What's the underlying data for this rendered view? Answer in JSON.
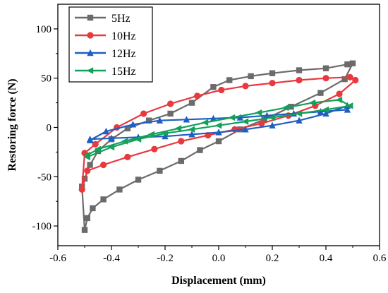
{
  "chart_data": {
    "type": "line",
    "xlabel": "Displacement (mm)",
    "ylabel": "Restoring force (N)",
    "xlim": [
      -0.6,
      0.6
    ],
    "ylim": [
      -120,
      125
    ],
    "xticks": [
      -0.6,
      -0.4,
      -0.2,
      0.0,
      0.2,
      0.4,
      0.6
    ],
    "xtick_labels": [
      "-0.6",
      "-0.4",
      "-0.2",
      "0.0",
      "0.2",
      "0.4",
      "0.6"
    ],
    "yticks": [
      -100,
      -50,
      0,
      50,
      100
    ],
    "ytick_labels": [
      "-100",
      "-50",
      "0",
      "50",
      "100"
    ],
    "grid": false,
    "legend_position": "top-left",
    "series": [
      {
        "name": "5Hz",
        "color": "#6b6b6b",
        "marker": "square",
        "x": [
          -0.5,
          -0.49,
          -0.47,
          -0.43,
          -0.37,
          -0.3,
          -0.22,
          -0.14,
          -0.07,
          0.0,
          0.08,
          0.17,
          0.27,
          0.38,
          0.47,
          0.5,
          0.48,
          0.4,
          0.3,
          0.2,
          0.12,
          0.04,
          -0.02,
          -0.1,
          -0.18,
          -0.26,
          -0.34,
          -0.4,
          -0.45,
          -0.48,
          -0.5,
          -0.51
        ],
        "y": [
          -104,
          -92,
          -82,
          -73,
          -63,
          -53,
          -44,
          -34,
          -23,
          -14,
          -2,
          8,
          21,
          35,
          49,
          65,
          64,
          60,
          58,
          55,
          52,
          48,
          41,
          25,
          14,
          7,
          -1,
          -12,
          -24,
          -38,
          -52,
          -60
        ]
      },
      {
        "name": "10Hz",
        "color": "#e8393e",
        "marker": "circle",
        "x": [
          -0.51,
          -0.49,
          -0.43,
          -0.34,
          -0.24,
          -0.14,
          -0.04,
          0.06,
          0.16,
          0.26,
          0.36,
          0.45,
          0.51,
          0.49,
          0.4,
          0.3,
          0.2,
          0.1,
          0.01,
          -0.08,
          -0.18,
          -0.28,
          -0.38,
          -0.46,
          -0.5
        ],
        "y": [
          -63,
          -44,
          -38,
          -30,
          -22,
          -14,
          -8,
          -2,
          4,
          12,
          22,
          34,
          48,
          51,
          50,
          48,
          45,
          42,
          38,
          32,
          24,
          14,
          0,
          -17,
          -26
        ]
      },
      {
        "name": "12Hz",
        "color": "#1f5fc4",
        "marker": "triangle-up",
        "x": [
          -0.48,
          -0.4,
          -0.3,
          -0.2,
          -0.1,
          0.0,
          0.1,
          0.2,
          0.3,
          0.4,
          0.48,
          0.48,
          0.38,
          0.28,
          0.18,
          0.08,
          -0.02,
          -0.12,
          -0.22,
          -0.32,
          -0.42,
          -0.48
        ],
        "y": [
          -12,
          -11,
          -10,
          -9,
          -7,
          -5,
          -2,
          2,
          7,
          14,
          22,
          18,
          16,
          14,
          12,
          10,
          9,
          8,
          7,
          3,
          -4,
          -13
        ]
      },
      {
        "name": "15Hz",
        "color": "#12a05a",
        "marker": "triangle-left",
        "x": [
          -0.49,
          -0.4,
          -0.3,
          -0.2,
          -0.1,
          0.0,
          0.1,
          0.2,
          0.3,
          0.4,
          0.49,
          0.45,
          0.35,
          0.25,
          0.15,
          0.05,
          -0.05,
          -0.15,
          -0.25,
          -0.35,
          -0.45,
          -0.49
        ],
        "y": [
          -30,
          -20,
          -12,
          -6,
          -2,
          2,
          6,
          10,
          14,
          18,
          22,
          28,
          25,
          20,
          15,
          10,
          5,
          -1,
          -7,
          -14,
          -22,
          -28
        ]
      }
    ]
  }
}
